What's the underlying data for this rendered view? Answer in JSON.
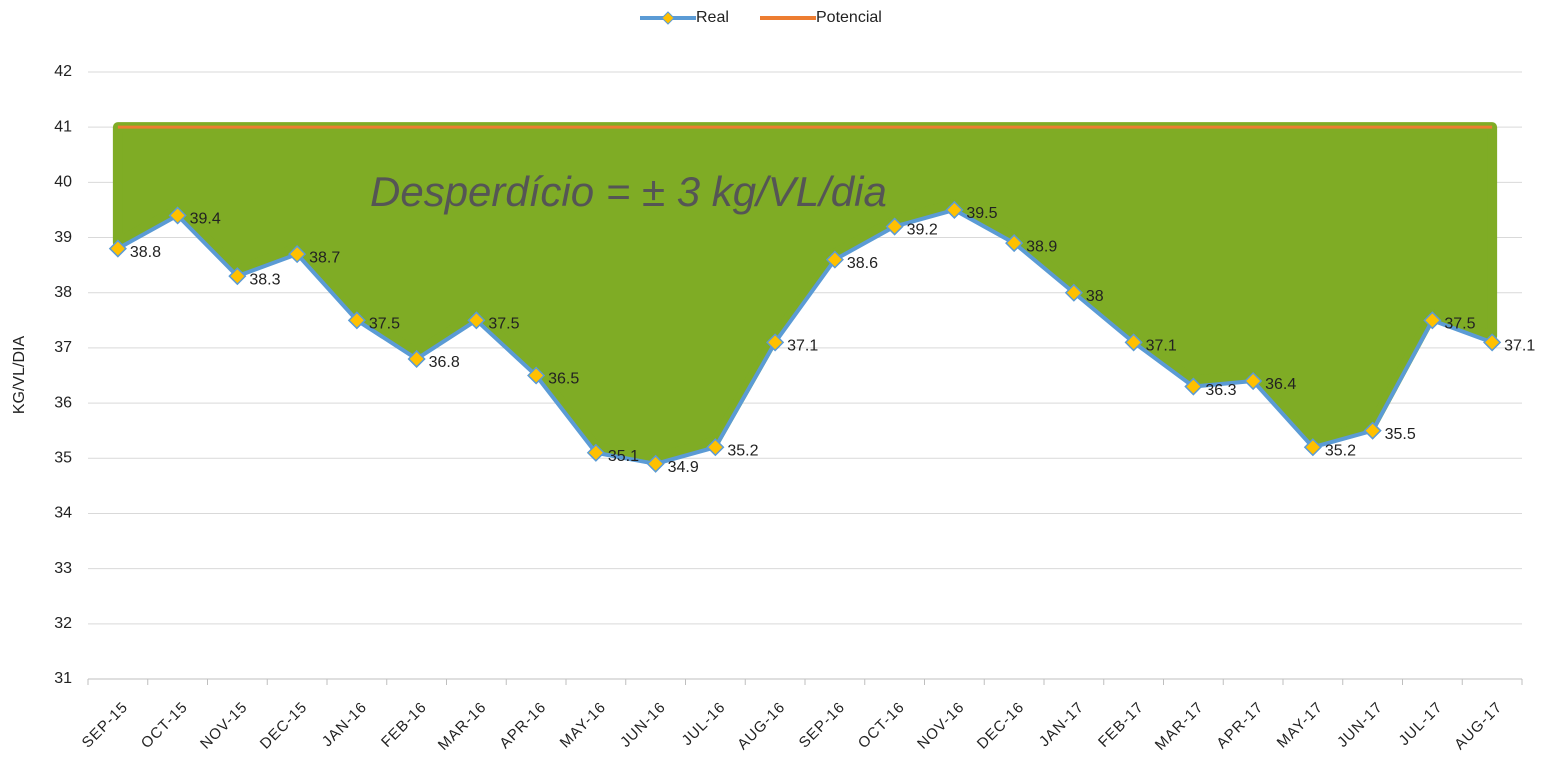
{
  "chart_data": {
    "type": "line",
    "y_label": "KG/VL/DIA",
    "annotation": "Desperdício = ± 3 kg/VL/dia",
    "categories": [
      "SEP-15",
      "OCT-15",
      "NOV-15",
      "DEC-15",
      "JAN-16",
      "FEB-16",
      "MAR-16",
      "APR-16",
      "MAY-16",
      "JUN-16",
      "JUL-16",
      "AUG-16",
      "SEP-16",
      "OCT-16",
      "NOV-16",
      "DEC-16",
      "JAN-17",
      "FEB-17",
      "MAR-17",
      "APR-17",
      "MAY-17",
      "JUN-17",
      "JUL-17",
      "AUG-17"
    ],
    "series": [
      {
        "name": "Real",
        "color": "#5b9bd5",
        "marker_color": "#ffc000",
        "values": [
          38.8,
          39.4,
          38.3,
          38.7,
          37.5,
          36.8,
          37.5,
          36.5,
          35.1,
          34.9,
          35.2,
          37.1,
          38.6,
          39.2,
          39.5,
          38.9,
          38.0,
          37.1,
          36.3,
          36.4,
          35.2,
          35.5,
          37.5,
          37.1
        ]
      },
      {
        "name": "Potencial",
        "color": "#ed7d31",
        "values": [
          41,
          41,
          41,
          41,
          41,
          41,
          41,
          41,
          41,
          41,
          41,
          41,
          41,
          41,
          41,
          41,
          41,
          41,
          41,
          41,
          41,
          41,
          41,
          41
        ]
      }
    ],
    "fill_color": "#7fac25",
    "ylim": [
      31,
      42
    ],
    "yticks": [
      31,
      32,
      33,
      34,
      35,
      36,
      37,
      38,
      39,
      40,
      41,
      42
    ],
    "grid": true,
    "legend": "top"
  }
}
